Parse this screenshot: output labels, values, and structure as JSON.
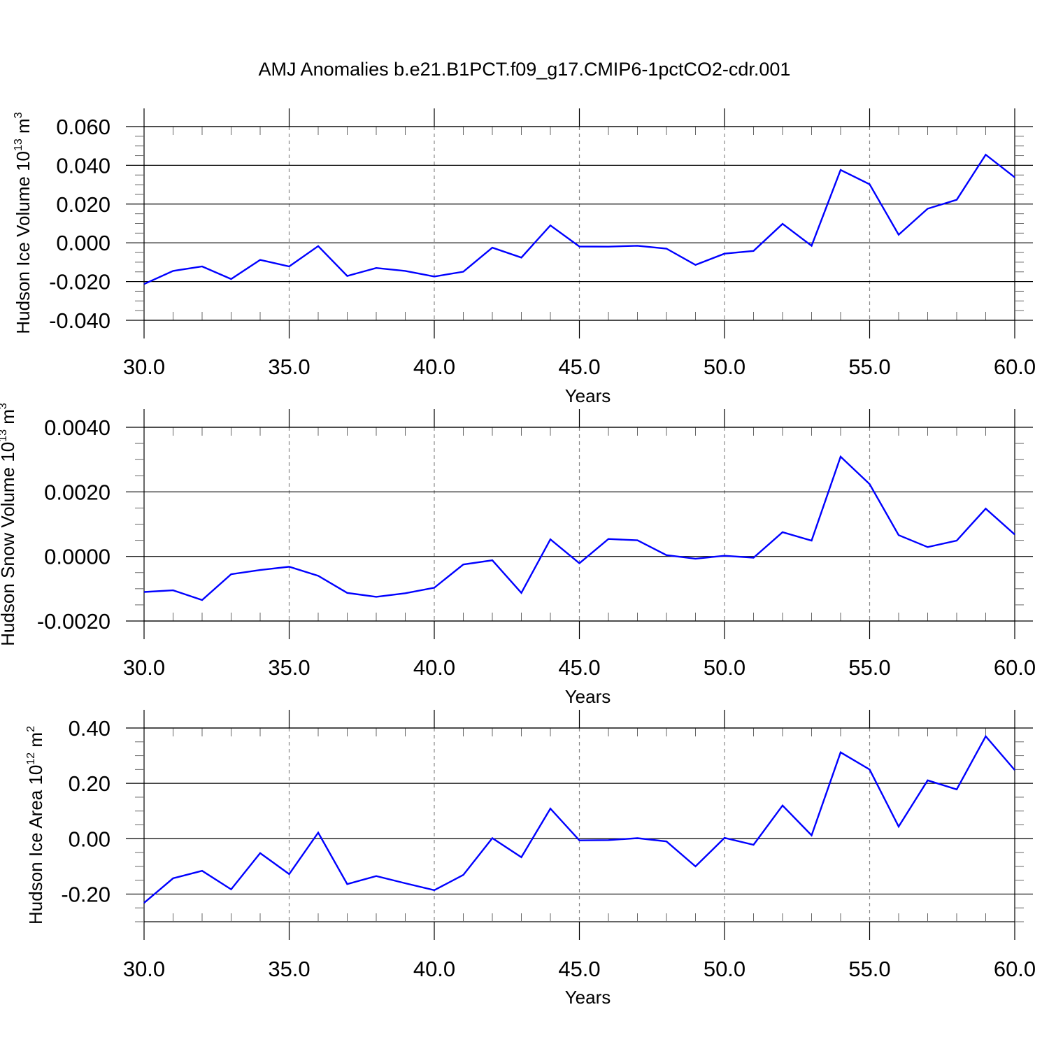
{
  "title": "AMJ Anomalies b.e21.B1PCT.f09_g17.CMIP6-1pctCO2-cdr.001",
  "line_color": "#0000ff",
  "chart_data": [
    {
      "type": "line",
      "xlabel": "Years",
      "ylabel": {
        "text": "Hudson Ice Volume 10",
        "sup": "13",
        "unit": " m",
        "unit_sup": "3"
      },
      "xlim": [
        30,
        60
      ],
      "ylim": [
        -0.04,
        0.06
      ],
      "xticks": [
        30,
        35,
        40,
        45,
        50,
        55,
        60
      ],
      "xtick_labels": [
        "30.0",
        "35.0",
        "40.0",
        "45.0",
        "50.0",
        "55.0",
        "60.0"
      ],
      "yticks": [
        -0.04,
        -0.02,
        0.0,
        0.02,
        0.04,
        0.06
      ],
      "ytick_labels": [
        "-0.040",
        "-0.020",
        "0.000",
        "0.020",
        "0.040",
        "0.060"
      ],
      "yminor": 0.005,
      "x": [
        30,
        31,
        32,
        33,
        34,
        35,
        36,
        37,
        38,
        39,
        40,
        41,
        42,
        43,
        44,
        45,
        46,
        47,
        48,
        49,
        50,
        51,
        52,
        53,
        54,
        55,
        56,
        57,
        58,
        59,
        60
      ],
      "y": [
        -0.0213,
        -0.0145,
        -0.0122,
        -0.0187,
        -0.0088,
        -0.0122,
        -0.0017,
        -0.0171,
        -0.013,
        -0.0145,
        -0.0174,
        -0.0149,
        -0.0025,
        -0.0076,
        0.009,
        -0.0019,
        -0.002,
        -0.0015,
        -0.003,
        -0.0114,
        -0.0056,
        -0.0042,
        0.0098,
        -0.0015,
        0.0376,
        0.0302,
        0.0042,
        0.0176,
        0.0222,
        0.0455,
        0.0338
      ]
    },
    {
      "type": "line",
      "xlabel": "Years",
      "ylabel": {
        "text": "Hudson Snow Volume 10",
        "sup": "13",
        "unit": " m",
        "unit_sup": "3"
      },
      "xlim": [
        30,
        60
      ],
      "ylim": [
        -0.002,
        0.004
      ],
      "xticks": [
        30,
        35,
        40,
        45,
        50,
        55,
        60
      ],
      "xtick_labels": [
        "30.0",
        "35.0",
        "40.0",
        "45.0",
        "50.0",
        "55.0",
        "60.0"
      ],
      "yticks": [
        -0.002,
        0.0,
        0.002,
        0.004
      ],
      "ytick_labels": [
        "-0.0020",
        "0.0000",
        "0.0020",
        "0.0040"
      ],
      "yminor": 0.0005,
      "x": [
        30,
        31,
        32,
        33,
        34,
        35,
        36,
        37,
        38,
        39,
        40,
        41,
        42,
        43,
        44,
        45,
        46,
        47,
        48,
        49,
        50,
        51,
        52,
        53,
        54,
        55,
        56,
        57,
        58,
        59,
        60
      ],
      "y": [
        -0.0011,
        -0.00105,
        -0.00135,
        -0.00055,
        -0.00042,
        -0.00032,
        -0.0006,
        -0.00113,
        -0.00125,
        -0.00114,
        -0.00097,
        -0.00025,
        -0.00012,
        -0.00113,
        0.00053,
        -0.00021,
        0.00054,
        0.0005,
        4e-05,
        -7e-05,
        2e-05,
        -4e-05,
        0.00075,
        0.00049,
        0.00309,
        0.00224,
        0.00066,
        0.00029,
        0.00049,
        0.00148,
        0.00068
      ]
    },
    {
      "type": "line",
      "xlabel": "Years",
      "ylabel": {
        "text": "Hudson Ice Area 10",
        "sup": "12",
        "unit": " m",
        "unit_sup": "2"
      },
      "xlim": [
        30,
        60
      ],
      "ylim": [
        -0.3,
        0.4
      ],
      "xticks": [
        30,
        35,
        40,
        45,
        50,
        55,
        60
      ],
      "xtick_labels": [
        "30.0",
        "35.0",
        "40.0",
        "45.0",
        "50.0",
        "55.0",
        "60.0"
      ],
      "yticks": [
        -0.2,
        0.0,
        0.2,
        0.4
      ],
      "ytick_labels": [
        "-0.20",
        "0.00",
        "0.20",
        "0.40"
      ],
      "yminor": 0.05,
      "x": [
        30,
        31,
        32,
        33,
        34,
        35,
        36,
        37,
        38,
        39,
        40,
        41,
        42,
        43,
        44,
        45,
        46,
        47,
        48,
        49,
        50,
        51,
        52,
        53,
        54,
        55,
        56,
        57,
        58,
        59,
        60
      ],
      "y": [
        -0.232,
        -0.143,
        -0.116,
        -0.183,
        -0.052,
        -0.128,
        0.022,
        -0.164,
        -0.135,
        -0.161,
        -0.186,
        -0.131,
        0.002,
        -0.067,
        0.109,
        -0.006,
        -0.005,
        0.002,
        -0.01,
        -0.1,
        0.003,
        -0.022,
        0.12,
        0.012,
        0.312,
        0.25,
        0.044,
        0.211,
        0.178,
        0.37,
        0.248
      ]
    }
  ]
}
